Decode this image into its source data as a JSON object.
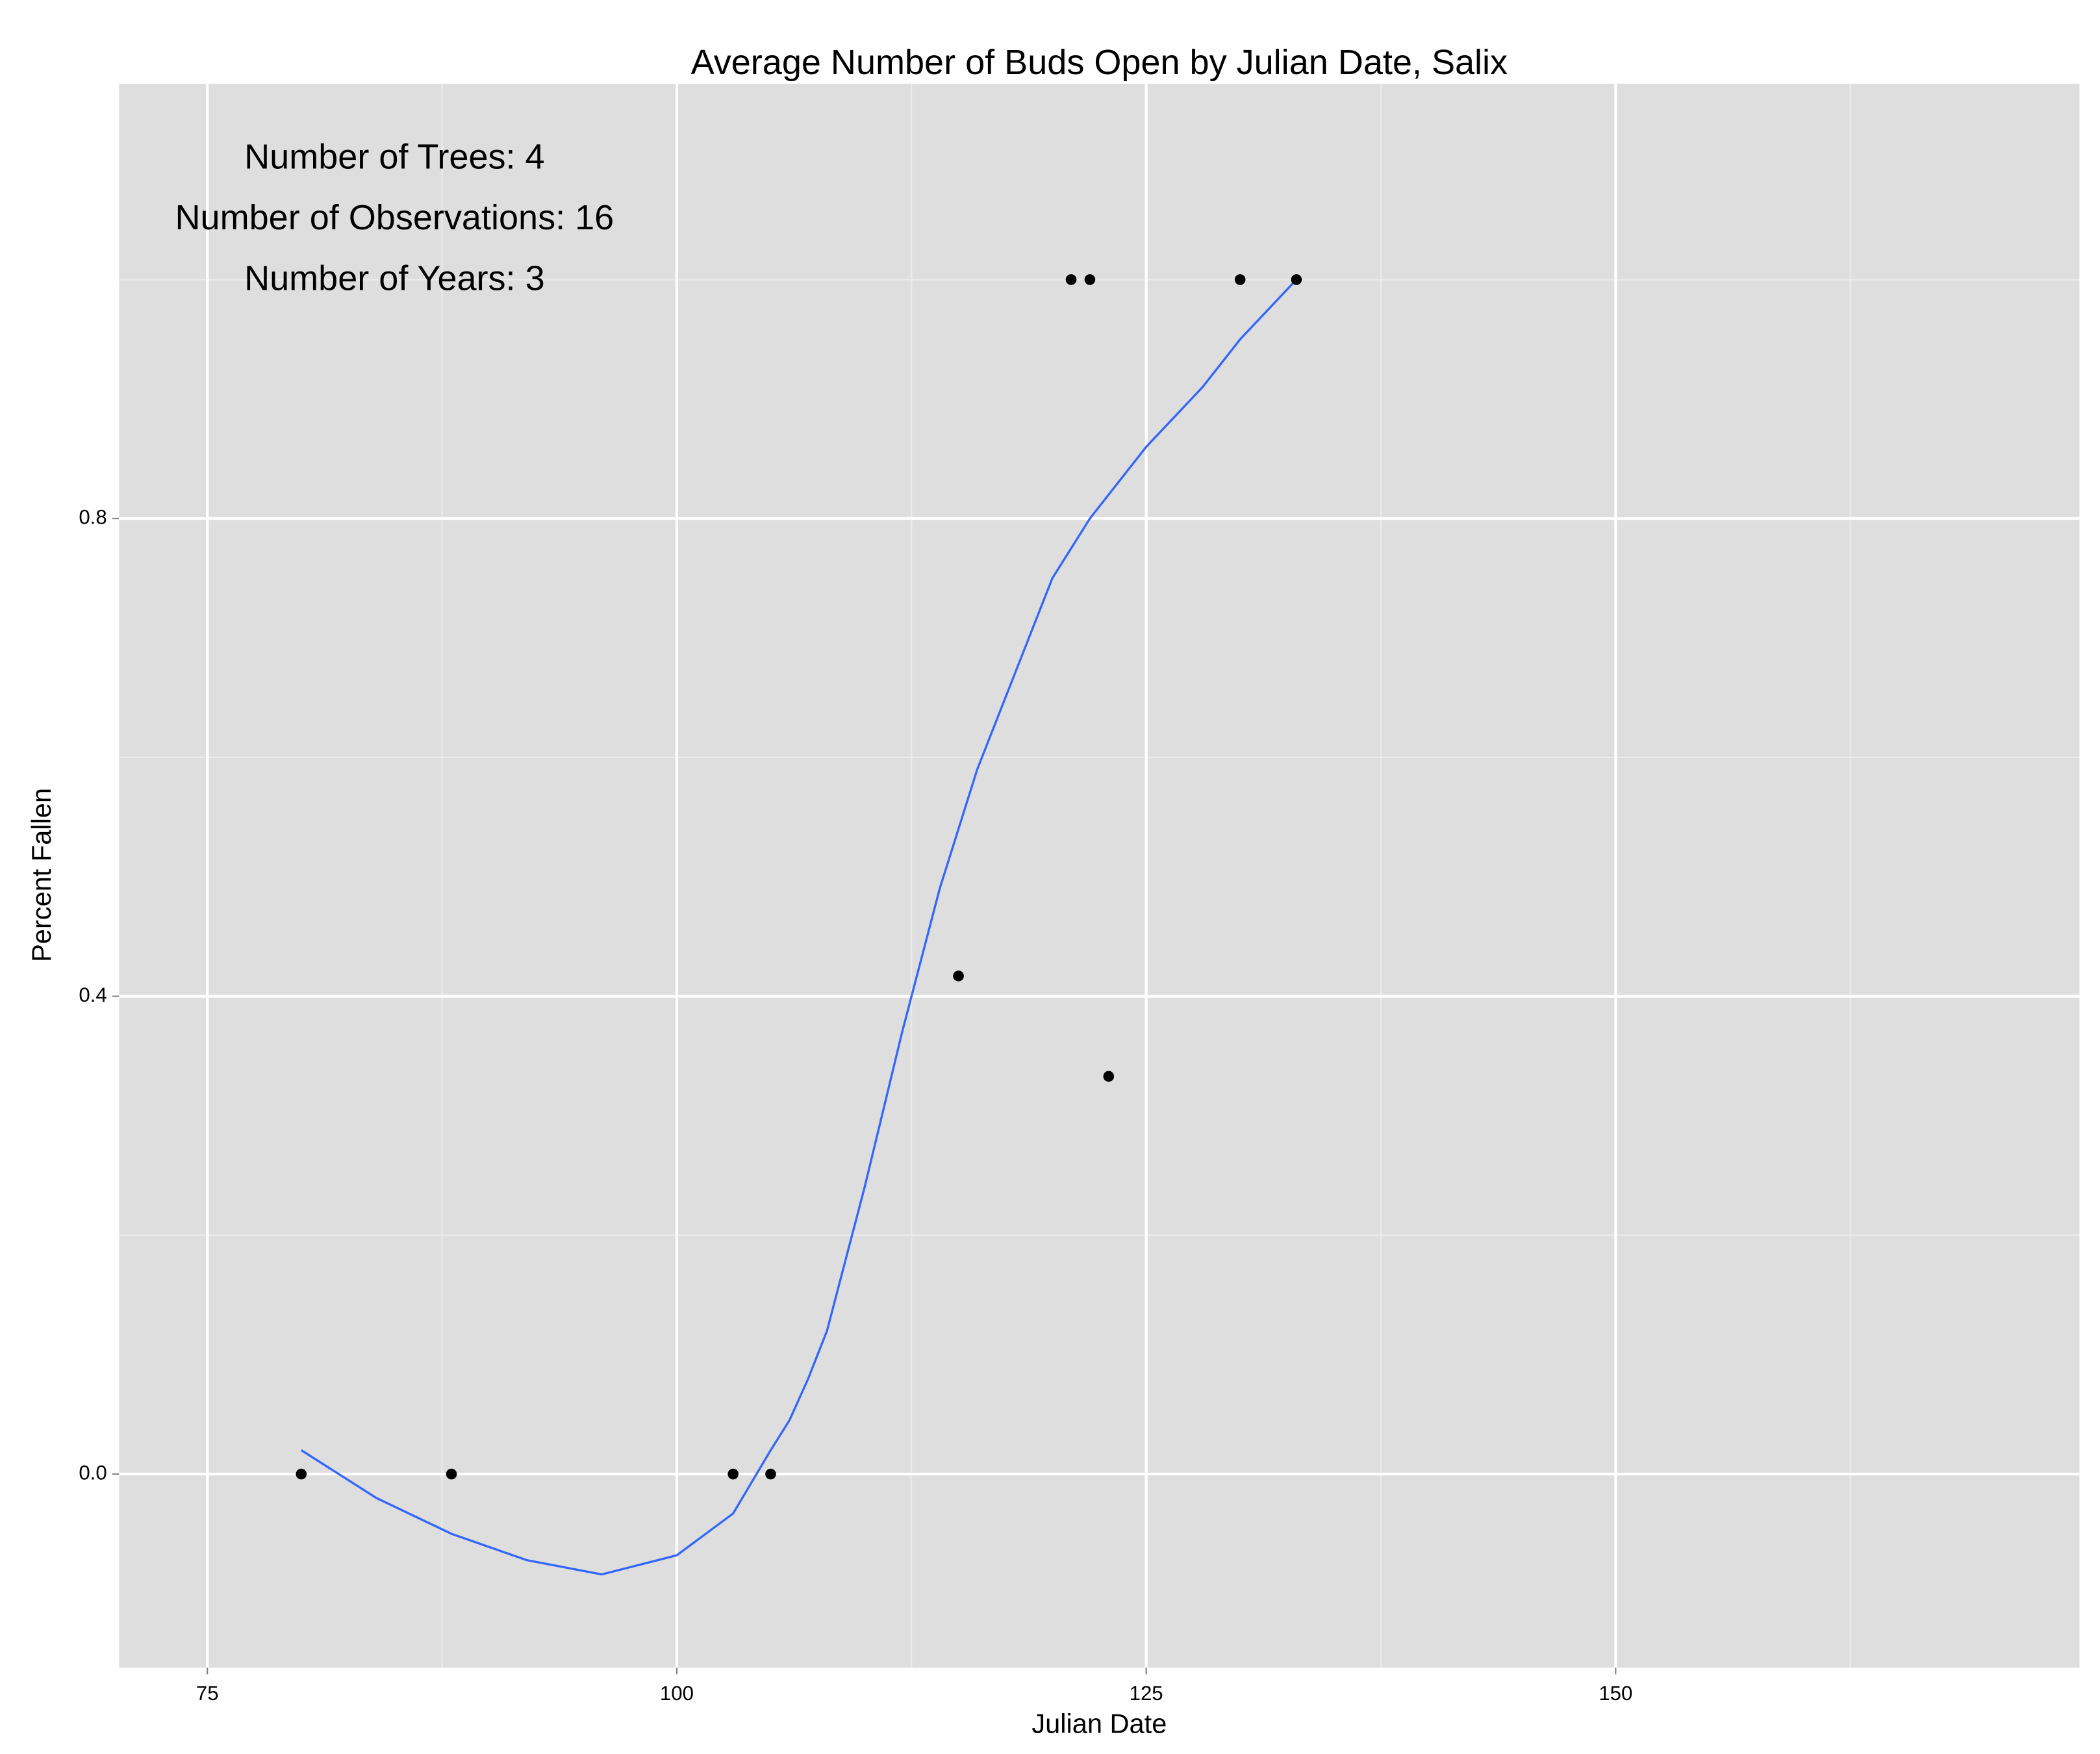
{
  "chart_data": {
    "type": "scatter",
    "title": "Average Number of Buds Open by Julian Date, Salix",
    "x_label": "Julian Date",
    "y_label": "Percent Fallen",
    "annotations": [
      "Number of Trees: 4",
      "Number of Observations: 16",
      "Number of Years: 3"
    ],
    "x": [
      80,
      88,
      103,
      105,
      115,
      121,
      122,
      123,
      130,
      133
    ],
    "values": [
      0,
      0,
      0,
      0,
      0.417,
      1,
      1,
      0.333,
      1,
      1
    ],
    "color": "#000000",
    "smooth": {
      "x": [
        80,
        84,
        88,
        92,
        96,
        100,
        103,
        105,
        106,
        107,
        108,
        110,
        112,
        114,
        116,
        118,
        120,
        122,
        125,
        128,
        130,
        133
      ],
      "values": [
        0.02,
        -0.02,
        -0.05,
        -0.072,
        -0.084,
        -0.068,
        -0.033,
        0.02,
        0.045,
        0.08,
        0.12,
        0.24,
        0.37,
        0.49,
        0.59,
        0.67,
        0.75,
        0.8,
        0.86,
        0.91,
        0.95,
        1.0
      ],
      "color": "#3366ff"
    },
    "xlim": [
      70.3,
      174.7
    ],
    "ylim": [
      -0.162,
      1.164
    ],
    "xticks": [
      75,
      100,
      125,
      150
    ],
    "yticks": [
      {
        "value": 0,
        "label": "0.0"
      },
      0.4,
      0.8
    ],
    "x_minor_grid": [
      87.5,
      112.5,
      137.5,
      162.5
    ],
    "y_minor_grid": [
      0.2,
      0.6,
      1.0
    ],
    "grid": true
  }
}
